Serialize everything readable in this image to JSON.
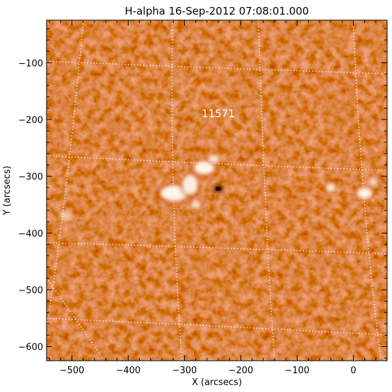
{
  "chart_data": {
    "type": "heatmap",
    "title": "H-alpha 16-Sep-2012 07:08:01.000",
    "xlabel": "X (arcsecs)",
    "ylabel": "Y (arcsecs)",
    "xlim": [
      -545,
      60
    ],
    "ylim": [
      -625,
      -25
    ],
    "x_ticks": [
      -500,
      -400,
      -300,
      -200,
      -100,
      0
    ],
    "x_tick_labels": [
      "−500",
      "−400",
      "−300",
      "−200",
      "−100",
      "0"
    ],
    "y_ticks": [
      -100,
      -200,
      -300,
      -400,
      -500,
      -600
    ],
    "y_tick_labels": [
      "−100",
      "−200",
      "−300",
      "−400",
      "−500",
      "−600"
    ],
    "annotations": [
      {
        "text": "11571",
        "x": -240,
        "y": -196
      }
    ],
    "grid": true,
    "colormap": {
      "low": "#3a0500",
      "mid": "#c84a10",
      "high": "#fff5e8"
    },
    "bright_features": [
      {
        "x": -318,
        "y": -330,
        "rx": 25,
        "ry": 14,
        "level": 1.0
      },
      {
        "x": -290,
        "y": -315,
        "rx": 14,
        "ry": 18,
        "level": 0.95
      },
      {
        "x": -265,
        "y": -285,
        "rx": 18,
        "ry": 12,
        "level": 1.0
      },
      {
        "x": -248,
        "y": -270,
        "rx": 10,
        "ry": 7,
        "level": 0.9
      },
      {
        "x": -280,
        "y": -350,
        "rx": 9,
        "ry": 8,
        "level": 0.85
      },
      {
        "x": -40,
        "y": -320,
        "rx": 9,
        "ry": 8,
        "level": 0.9
      },
      {
        "x": 20,
        "y": -330,
        "rx": 14,
        "ry": 10,
        "level": 1.0
      },
      {
        "x": 35,
        "y": -310,
        "rx": 8,
        "ry": 8,
        "level": 0.8
      },
      {
        "x": -510,
        "y": -370,
        "rx": 14,
        "ry": 10,
        "level": 0.55
      }
    ],
    "sunspot": {
      "x": -240,
      "y": -322,
      "rx": 8,
      "ry": 6
    }
  }
}
